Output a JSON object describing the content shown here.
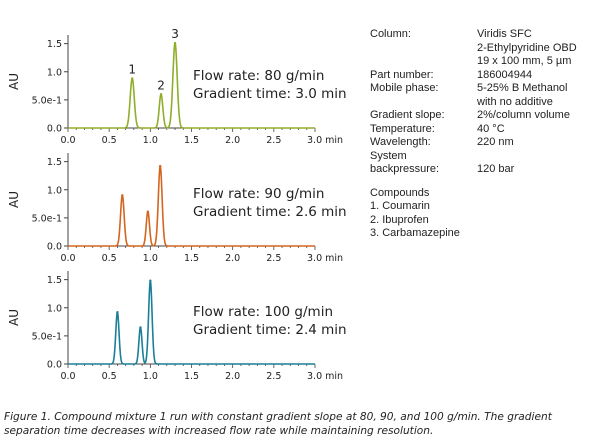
{
  "chart_data": [
    {
      "type": "line",
      "title": "",
      "xlabel": "",
      "ylabel": "AU",
      "x_unit": "min",
      "xlim": [
        0.0,
        3.0
      ],
      "ylim": [
        0.0,
        1.6
      ],
      "xticks": [
        "0.0",
        "0.5",
        "1.0",
        "1.5",
        "2.0",
        "2.5",
        "3.0 min"
      ],
      "yticks": [
        "0.0",
        "5.0e-1",
        "1.0",
        "1.5"
      ],
      "color": "#8fae2a",
      "peaks": [
        {
          "time": 0.78,
          "height": 0.88,
          "width": 0.025
        },
        {
          "time": 1.13,
          "height": 0.6,
          "width": 0.022
        },
        {
          "time": 1.3,
          "height": 1.51,
          "width": 0.026
        }
      ],
      "peak_labels": [
        "1",
        "2",
        "3"
      ],
      "annotation_lines": [
        "Flow rate: 80 g/min",
        "Gradient time: 3.0 min"
      ]
    },
    {
      "type": "line",
      "title": "",
      "xlabel": "",
      "ylabel": "AU",
      "x_unit": "min",
      "xlim": [
        0.0,
        3.0
      ],
      "ylim": [
        0.0,
        1.6
      ],
      "xticks": [
        "0.0",
        "0.5",
        "1.0",
        "1.5",
        "2.0",
        "2.5",
        "3.0 min"
      ],
      "yticks": [
        "0.0",
        "5.0e-1",
        "1.0",
        "1.5"
      ],
      "color": "#d4651e",
      "peaks": [
        {
          "time": 0.66,
          "height": 0.9,
          "width": 0.022
        },
        {
          "time": 0.97,
          "height": 0.61,
          "width": 0.02
        },
        {
          "time": 1.12,
          "height": 1.42,
          "width": 0.023
        }
      ],
      "peak_labels": [],
      "annotation_lines": [
        "Flow rate: 90 g/min",
        "Gradient time: 2.6 min"
      ]
    },
    {
      "type": "line",
      "title": "",
      "xlabel": "",
      "ylabel": "AU",
      "x_unit": "min",
      "xlim": [
        0.0,
        3.0
      ],
      "ylim": [
        0.0,
        1.6
      ],
      "xticks": [
        "0.0",
        "0.5",
        "1.0",
        "1.5",
        "2.0",
        "2.5",
        "3.0 min"
      ],
      "yticks": [
        "0.0",
        "5.0e-1",
        "1.0",
        "1.5"
      ],
      "color": "#1b7f98",
      "peaks": [
        {
          "time": 0.6,
          "height": 0.92,
          "width": 0.02
        },
        {
          "time": 0.88,
          "height": 0.65,
          "width": 0.019
        },
        {
          "time": 1.0,
          "height": 1.48,
          "width": 0.021
        }
      ],
      "peak_labels": [],
      "annotation_lines": [
        "Flow rate: 100 g/min",
        "Gradient time: 2.4 min"
      ]
    }
  ],
  "conditions": [
    {
      "label": "Column:",
      "values": [
        "Viridis SFC",
        "2-Ethylpyridine OBD",
        "19 x 100 mm, 5 µm"
      ]
    },
    {
      "label": "Part number:",
      "values": [
        "186004944"
      ]
    },
    {
      "label": "Mobile phase:",
      "values": [
        "5-25% B Methanol",
        "with no additive"
      ]
    },
    {
      "label": "Gradient slope:",
      "values": [
        "2%/column volume"
      ]
    },
    {
      "label": "Temperature:",
      "values": [
        "40 °C"
      ]
    },
    {
      "label": "Wavelength:",
      "values": [
        "220 nm"
      ]
    },
    {
      "label": "System backpressure:",
      "values": [
        "120 bar"
      ]
    }
  ],
  "compounds": {
    "title": "Compounds",
    "items": [
      "1. Coumarin",
      "2. Ibuprofen",
      "3. Carbamazepine"
    ]
  },
  "caption": "Figure 1. Compound mixture 1 run with constant gradient slope at 80, 90, and 100 g/min. The gradient separation time decreases with increased flow rate while maintaining resolution."
}
